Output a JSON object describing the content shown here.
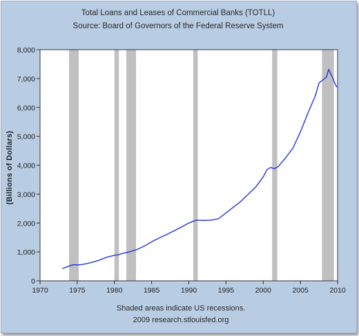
{
  "chart_data": {
    "type": "line",
    "title": "Total Loans and Leases of Commercial Banks (TOTLL)",
    "subtitle": "Source: Board of Governors of the Federal Reserve System",
    "ylabel": "(Billions of Dollars)",
    "xlabel": "",
    "xlim": [
      1970,
      2010
    ],
    "ylim": [
      0,
      8000
    ],
    "x_ticks": [
      1970,
      1975,
      1980,
      1985,
      1990,
      1995,
      2000,
      2005,
      2010
    ],
    "y_ticks": [
      0,
      1000,
      2000,
      3000,
      4000,
      5000,
      6000,
      7000,
      8000
    ],
    "x_tick_labels": [
      "1970",
      "1975",
      "1980",
      "1985",
      "1990",
      "1995",
      "2000",
      "2005",
      "2010"
    ],
    "y_tick_labels": [
      "0",
      "1,000",
      "2,000",
      "3,000",
      "4,000",
      "5,000",
      "6,000",
      "7,000",
      "8,000"
    ],
    "grid": false,
    "legend": null,
    "line_color": "#2233dd",
    "recession_color": "#c0c0c0",
    "recessions": [
      [
        1973.9,
        1975.2
      ],
      [
        1980.0,
        1980.6
      ],
      [
        1981.6,
        1982.9
      ],
      [
        1990.6,
        1991.2
      ],
      [
        2001.2,
        2001.9
      ],
      [
        2007.9,
        2009.5
      ]
    ],
    "series": [
      {
        "x": [
          1973.0,
          1973.5,
          1974.0,
          1974.5,
          1975.0,
          1975.5,
          1976.0,
          1977.0,
          1978.0,
          1979.0,
          1980.0,
          1980.5,
          1981.0,
          1982.0,
          1983.0,
          1984.0,
          1985.0,
          1986.0,
          1987.0,
          1988.0,
          1989.0,
          1990.0,
          1990.5,
          1991.0,
          1992.0,
          1993.0,
          1994.0,
          1995.0,
          1996.0,
          1997.0,
          1998.0,
          1999.0,
          2000.0,
          2000.5,
          2001.0,
          2001.5,
          2002.0,
          2003.0,
          2004.0,
          2005.0,
          2006.0,
          2007.0,
          2007.5,
          2008.0,
          2008.5,
          2008.8,
          2009.0,
          2009.3,
          2009.6,
          2009.9
        ],
        "y": [
          420,
          470,
          520,
          560,
          550,
          560,
          580,
          640,
          720,
          820,
          880,
          900,
          940,
          1000,
          1080,
          1200,
          1350,
          1480,
          1600,
          1730,
          1860,
          2000,
          2050,
          2100,
          2090,
          2100,
          2150,
          2350,
          2550,
          2750,
          3000,
          3250,
          3600,
          3850,
          3920,
          3880,
          3950,
          4250,
          4600,
          5150,
          5800,
          6400,
          6850,
          6950,
          7050,
          7320,
          7200,
          7050,
          6850,
          6700
        ]
      }
    ],
    "footer_lines": [
      "Shaded areas indicate US recessions.",
      "2009 research.stlouisfed.org"
    ]
  }
}
